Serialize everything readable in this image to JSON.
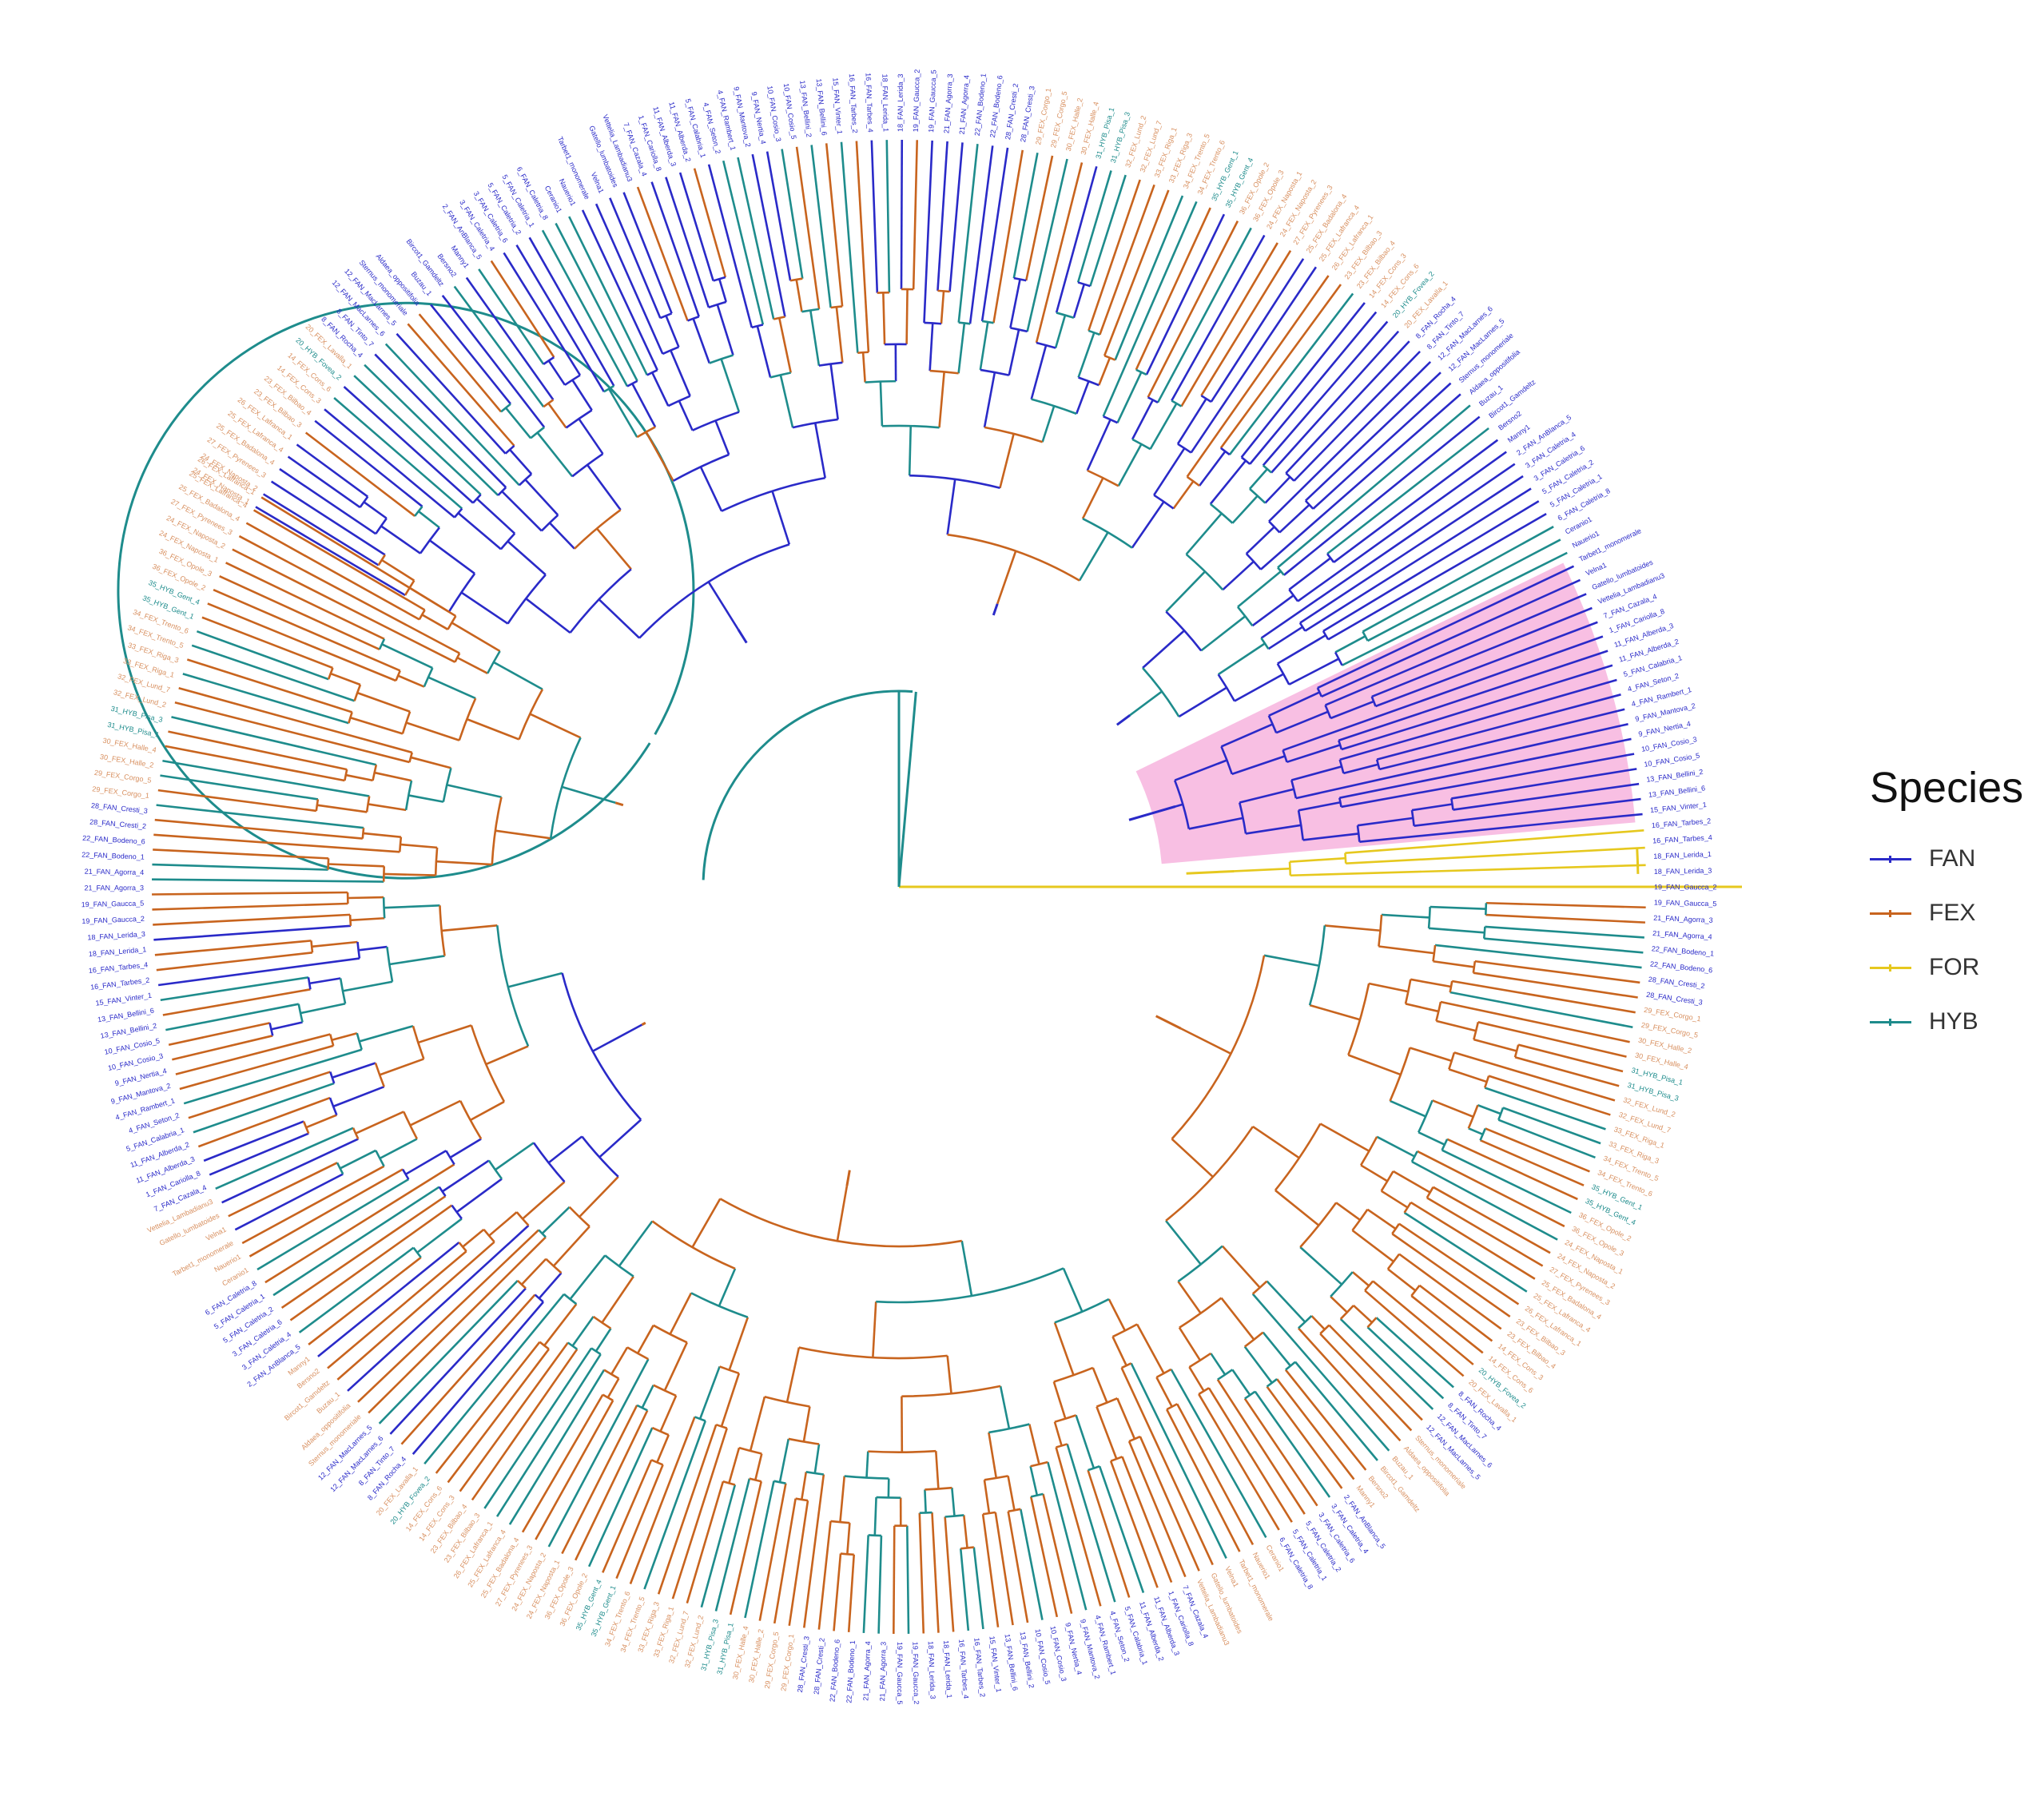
{
  "legend": {
    "title": "Species",
    "items": [
      {
        "label": "FAN",
        "color": "#2a2ac8"
      },
      {
        "label": "FEX",
        "color": "#c8641e"
      },
      {
        "label": "FOR",
        "color": "#e6c81e"
      },
      {
        "label": "HYB",
        "color": "#1e8c8c"
      }
    ]
  },
  "highlight_color": "#f7b8e0",
  "tree": {
    "layout": "circular",
    "tips": [
      "24_FEX_Naposta_1",
      "24_FEX_Naposta_2",
      "27_FEX_Pyrenees_3",
      "25_FEX_Badalona_4",
      "25_FEX_Lafranca_4",
      "26_FEX_Lafranca_1",
      "23_FEX_Bilbao_3",
      "23_FEX_Bilbao_4",
      "14_FEX_Cons_3",
      "14_FEX_Cons_6",
      "20_HYB_Fovea_2",
      "20_FEX_Lavalla_1",
      "8_FAN_Rocha_4",
      "8_FAN_Tinto_7",
      "12_FAN_MacLarnes_6",
      "12_FAN_MacLarnes_5",
      "Sternus_monomeriale",
      "Aldaea_oppositifolia",
      "Buzau_1",
      "Bircot1_Gamdeltz",
      "Bersno2",
      "Manny1",
      "2_FAN_AnBlanca_5",
      "3_FAN_Caletria_4",
      "3_FAN_Caletria_6",
      "5_FAN_Caletria_2",
      "5_FAN_Caletria_1",
      "6_FAN_Caletria_8",
      "Ceranio1",
      "Nauerio1",
      "Tarbet1_monomerale",
      "Velna1",
      "Gatello_lumbatoides",
      "Vettelia_Lambadianu3",
      "7_FAN_Cazala_4",
      "1_FAN_Cariolla_8",
      "11_FAN_Alberda_3",
      "11_FAN_Alberda_2",
      "5_FAN_Calabria_1",
      "4_FAN_Seton_2",
      "4_FAN_Rambert_1",
      "9_FAN_Mantova_2",
      "9_FAN_Nertia_4",
      "10_FAN_Cosio_3",
      "10_FAN_Cosio_5",
      "13_FAN_Bellini_2",
      "13_FAN_Bellini_6",
      "15_FAN_Vinter_1",
      "16_FAN_Tarbes_2",
      "16_FAN_Tarbes_4",
      "18_FAN_Lerida_1",
      "18_FAN_Lerida_3",
      "19_FAN_Gaucca_2",
      "19_FAN_Gaucca_5",
      "21_FAN_Agorra_3",
      "21_FAN_Agorra_4",
      "22_FAN_Bodeno_1",
      "22_FAN_Bodeno_6",
      "28_FAN_Cresti_2",
      "28_FAN_Cresti_3",
      "29_FEX_Corgo_1",
      "29_FEX_Corgo_5",
      "30_FEX_Halle_2",
      "30_FEX_Halle_4",
      "31_HYB_Pisa_1",
      "31_HYB_Pisa_3",
      "32_FEX_Lund_2",
      "32_FEX_Lund_7",
      "33_FEX_Riga_1",
      "33_FEX_Riga_3",
      "34_FEX_Trento_5",
      "34_FEX_Trento_6",
      "35_HYB_Gent_1",
      "35_HYB_Gent_4",
      "36_FEX_Opole_2",
      "36_FEX_Opole_3"
    ]
  }
}
